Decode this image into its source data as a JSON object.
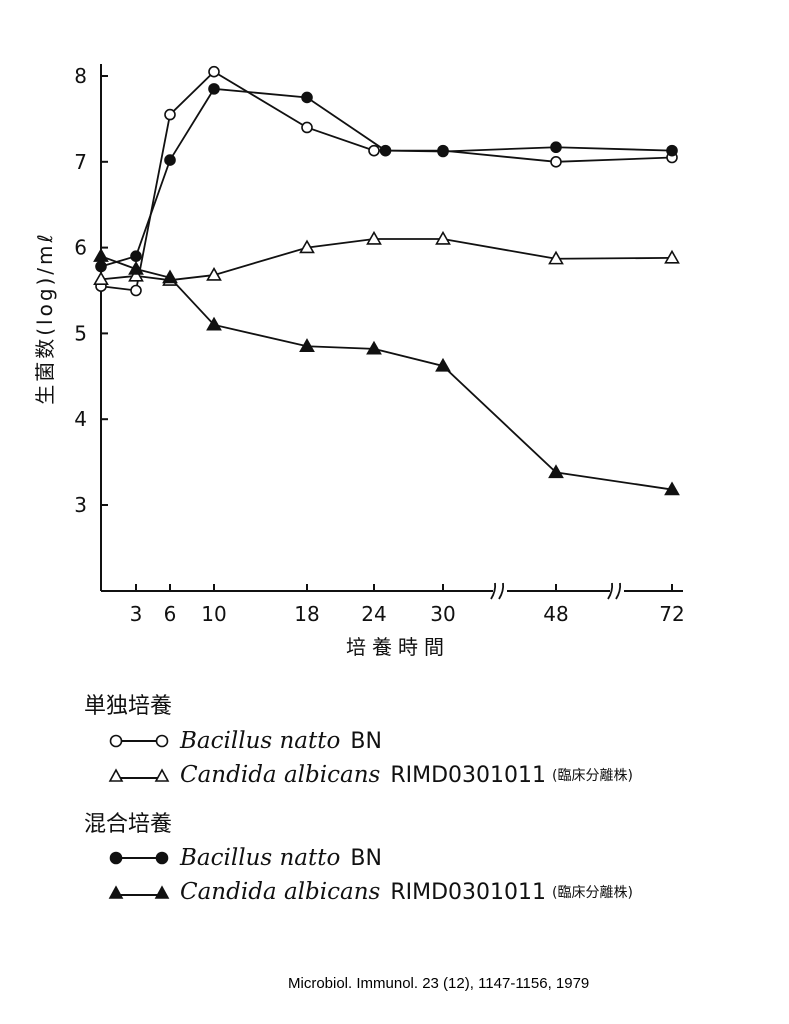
{
  "chart_data": {
    "type": "line",
    "ylabel": "生菌数(log)/mℓ",
    "xlabel": "培養時間",
    "x_ticks": [
      3,
      6,
      10,
      18,
      24,
      30,
      48,
      72
    ],
    "y_ticks": [
      3,
      4,
      5,
      6,
      7,
      8
    ],
    "ylim": [
      2,
      8.2
    ],
    "x_axis_breaks": [
      "30-48",
      "48-72"
    ],
    "series": [
      {
        "name": "Bacillus natto BN",
        "group": "単独培養",
        "marker": "open-circle",
        "x": [
          0,
          3,
          6,
          10,
          18,
          24,
          30,
          48,
          72
        ],
        "y": [
          5.55,
          5.5,
          7.55,
          8.05,
          7.4,
          7.13,
          7.13,
          7.0,
          7.05
        ]
      },
      {
        "name": "Candida albicans RIMD0301011",
        "group": "単独培養",
        "marker": "open-triangle",
        "x": [
          0,
          3,
          6,
          10,
          18,
          24,
          30,
          48,
          72
        ],
        "y": [
          5.63,
          5.67,
          5.62,
          5.68,
          6.0,
          6.1,
          6.1,
          5.87,
          5.88
        ]
      },
      {
        "name": "Bacillus natto BN",
        "group": "混合培養",
        "marker": "filled-circle",
        "x": [
          0,
          3,
          6,
          10,
          18,
          25,
          30,
          48,
          72
        ],
        "y": [
          5.78,
          5.9,
          7.02,
          7.85,
          7.75,
          7.13,
          7.12,
          7.17,
          7.13
        ]
      },
      {
        "name": "Candida albicans RIMD0301011",
        "group": "混合培養",
        "marker": "filled-triangle",
        "x": [
          0,
          3,
          6,
          10,
          18,
          24,
          30,
          48,
          72
        ],
        "y": [
          5.9,
          5.75,
          5.65,
          5.1,
          4.85,
          4.82,
          4.62,
          3.38,
          3.18
        ]
      }
    ]
  },
  "legend": {
    "groups": [
      {
        "title": "単独培養",
        "items": [
          {
            "name": "Bacillus natto",
            "strain": "BN",
            "note": ""
          },
          {
            "name": "Candida albicans",
            "strain": "RIMD0301011",
            "note": "(臨床分離株)"
          }
        ]
      },
      {
        "title": "混合培養",
        "items": [
          {
            "name": "Bacillus natto",
            "strain": "BN",
            "note": ""
          },
          {
            "name": "Candida albicans",
            "strain": "RIMD0301011",
            "note": "(臨床分離株)"
          }
        ]
      }
    ]
  },
  "citation": "Microbiol. Immunol. 23 (12), 1147-1156, 1979"
}
